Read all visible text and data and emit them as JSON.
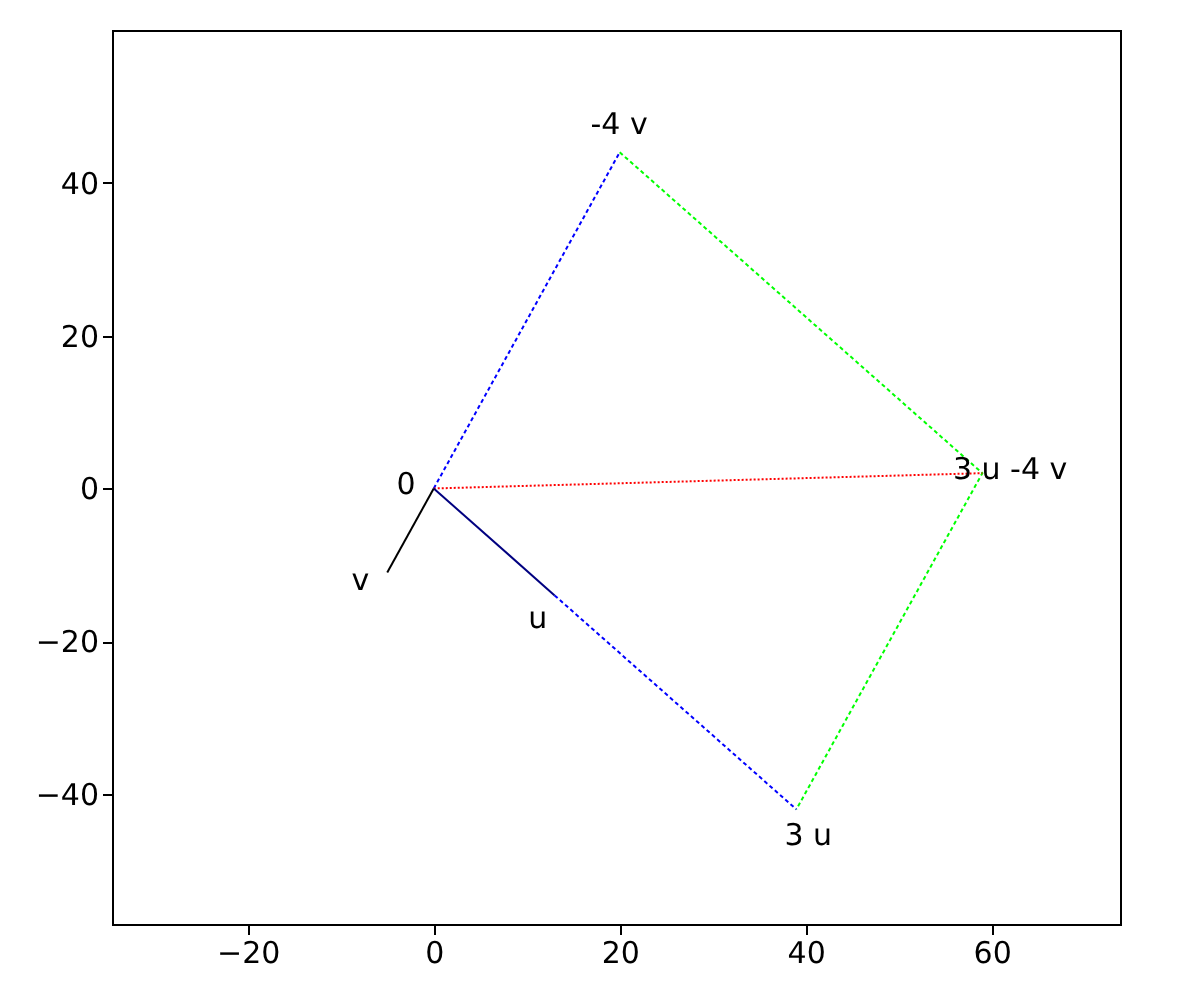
{
  "chart_data": {
    "type": "line",
    "xlim": [
      -34.6,
      73.8
    ],
    "ylim": [
      -57,
      60
    ],
    "xticks": [
      -20,
      0,
      20,
      40,
      60
    ],
    "yticks": [
      -40,
      -20,
      0,
      20,
      40
    ],
    "grid": false,
    "marker": "none",
    "series": [
      {
        "color": "#0000ff",
        "line_style": "dashed",
        "x": [
          0,
          20,
          null,
          13,
          39
        ],
        "values": [
          0,
          44,
          null,
          -14,
          -42
        ]
      },
      {
        "color": "#00ff00",
        "line_style": "dashed",
        "x": [
          20,
          59,
          39
        ],
        "values": [
          44,
          2,
          -42
        ]
      },
      {
        "color": "#ff0000",
        "line_style": "dotted",
        "x": [
          0,
          59
        ],
        "values": [
          0,
          2
        ]
      },
      {
        "color": "#000080",
        "line_style": "solid",
        "x": [
          0,
          13
        ],
        "values": [
          0,
          -14
        ]
      },
      {
        "color": "#000000",
        "line_style": "solid",
        "x": [
          0,
          -5
        ],
        "values": [
          0,
          -11
        ]
      }
    ],
    "annotations": [
      {
        "text": "0",
        "x": 0,
        "y": 0
      },
      {
        "text": "u",
        "x": 13,
        "y": -14
      },
      {
        "text": "v",
        "x": -5,
        "y": -11
      },
      {
        "text": "-4 v",
        "x": 20,
        "y": 44
      },
      {
        "text": "3 u",
        "x": 39,
        "y": -42
      },
      {
        "text": "3 u -4 v",
        "x": 59,
        "y": 2
      }
    ]
  }
}
